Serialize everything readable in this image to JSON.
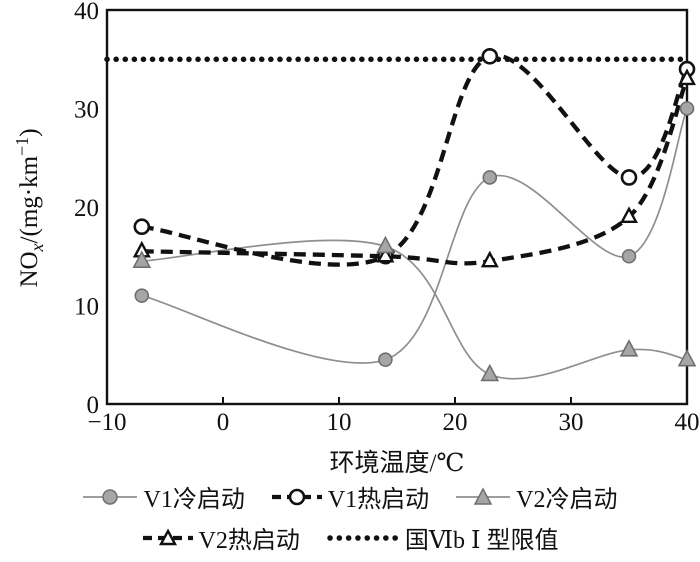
{
  "figure": {
    "xlabel": "环境温度/℃",
    "ylabel_parts": [
      {
        "t": "NO"
      },
      {
        "t": "x"
      },
      {
        "t": "/(mg·km"
      },
      {
        "t": "−1"
      },
      {
        "t": ")"
      }
    ]
  },
  "chart_data": {
    "type": "line",
    "title": "",
    "xlabel": "环境温度/℃",
    "ylabel": "NOx/(mg·km−1)",
    "xlim": [
      -10,
      40
    ],
    "ylim": [
      0,
      40
    ],
    "xticks": [
      -10,
      0,
      10,
      20,
      30,
      40
    ],
    "xtick_labels": [
      "−10",
      "0",
      "10",
      "20",
      "30",
      "40"
    ],
    "yticks": [
      0,
      10,
      20,
      30,
      40
    ],
    "ytick_labels": [
      "0",
      "10",
      "20",
      "30",
      "40"
    ],
    "grid": false,
    "legend_position": "bottom",
    "x": [
      -7,
      14,
      23,
      35,
      40
    ],
    "series": [
      {
        "id": "v1-cold",
        "name": "V1冷启动",
        "values": [
          11,
          4.5,
          23,
          15,
          30
        ],
        "style": "solid",
        "color": "#8f8f8f",
        "width": 1.7,
        "marker": "circle-filled",
        "marker_fill": "#a6a6a6",
        "marker_stroke": "#6f6f6f"
      },
      {
        "id": "v1-hot",
        "name": "V1热启动",
        "values": [
          18,
          15,
          35.3,
          23,
          34
        ],
        "style": "dashed",
        "color": "#111111",
        "width": 4.3,
        "marker": "circle-open",
        "marker_fill": "#ffffff",
        "marker_stroke": "#111111"
      },
      {
        "id": "v2-cold",
        "name": "V2冷启动",
        "values": [
          14.5,
          16,
          3,
          5.5,
          4.5
        ],
        "style": "solid",
        "color": "#8f8f8f",
        "width": 1.7,
        "marker": "triangle-filled",
        "marker_fill": "#a6a6a6",
        "marker_stroke": "#6f6f6f"
      },
      {
        "id": "v2-hot",
        "name": "V2热启动",
        "values": [
          15.5,
          15,
          14.5,
          19,
          33
        ],
        "style": "dashed",
        "color": "#111111",
        "width": 4.3,
        "marker": "triangle-open",
        "marker_fill": "#ffffff",
        "marker_stroke": "#111111"
      },
      {
        "id": "limit",
        "name": "国Ⅵb Ⅰ 型限值",
        "type": "hline",
        "values": 35,
        "style": "dotted",
        "color": "#111111",
        "width": 5.5,
        "marker": "none"
      }
    ]
  }
}
